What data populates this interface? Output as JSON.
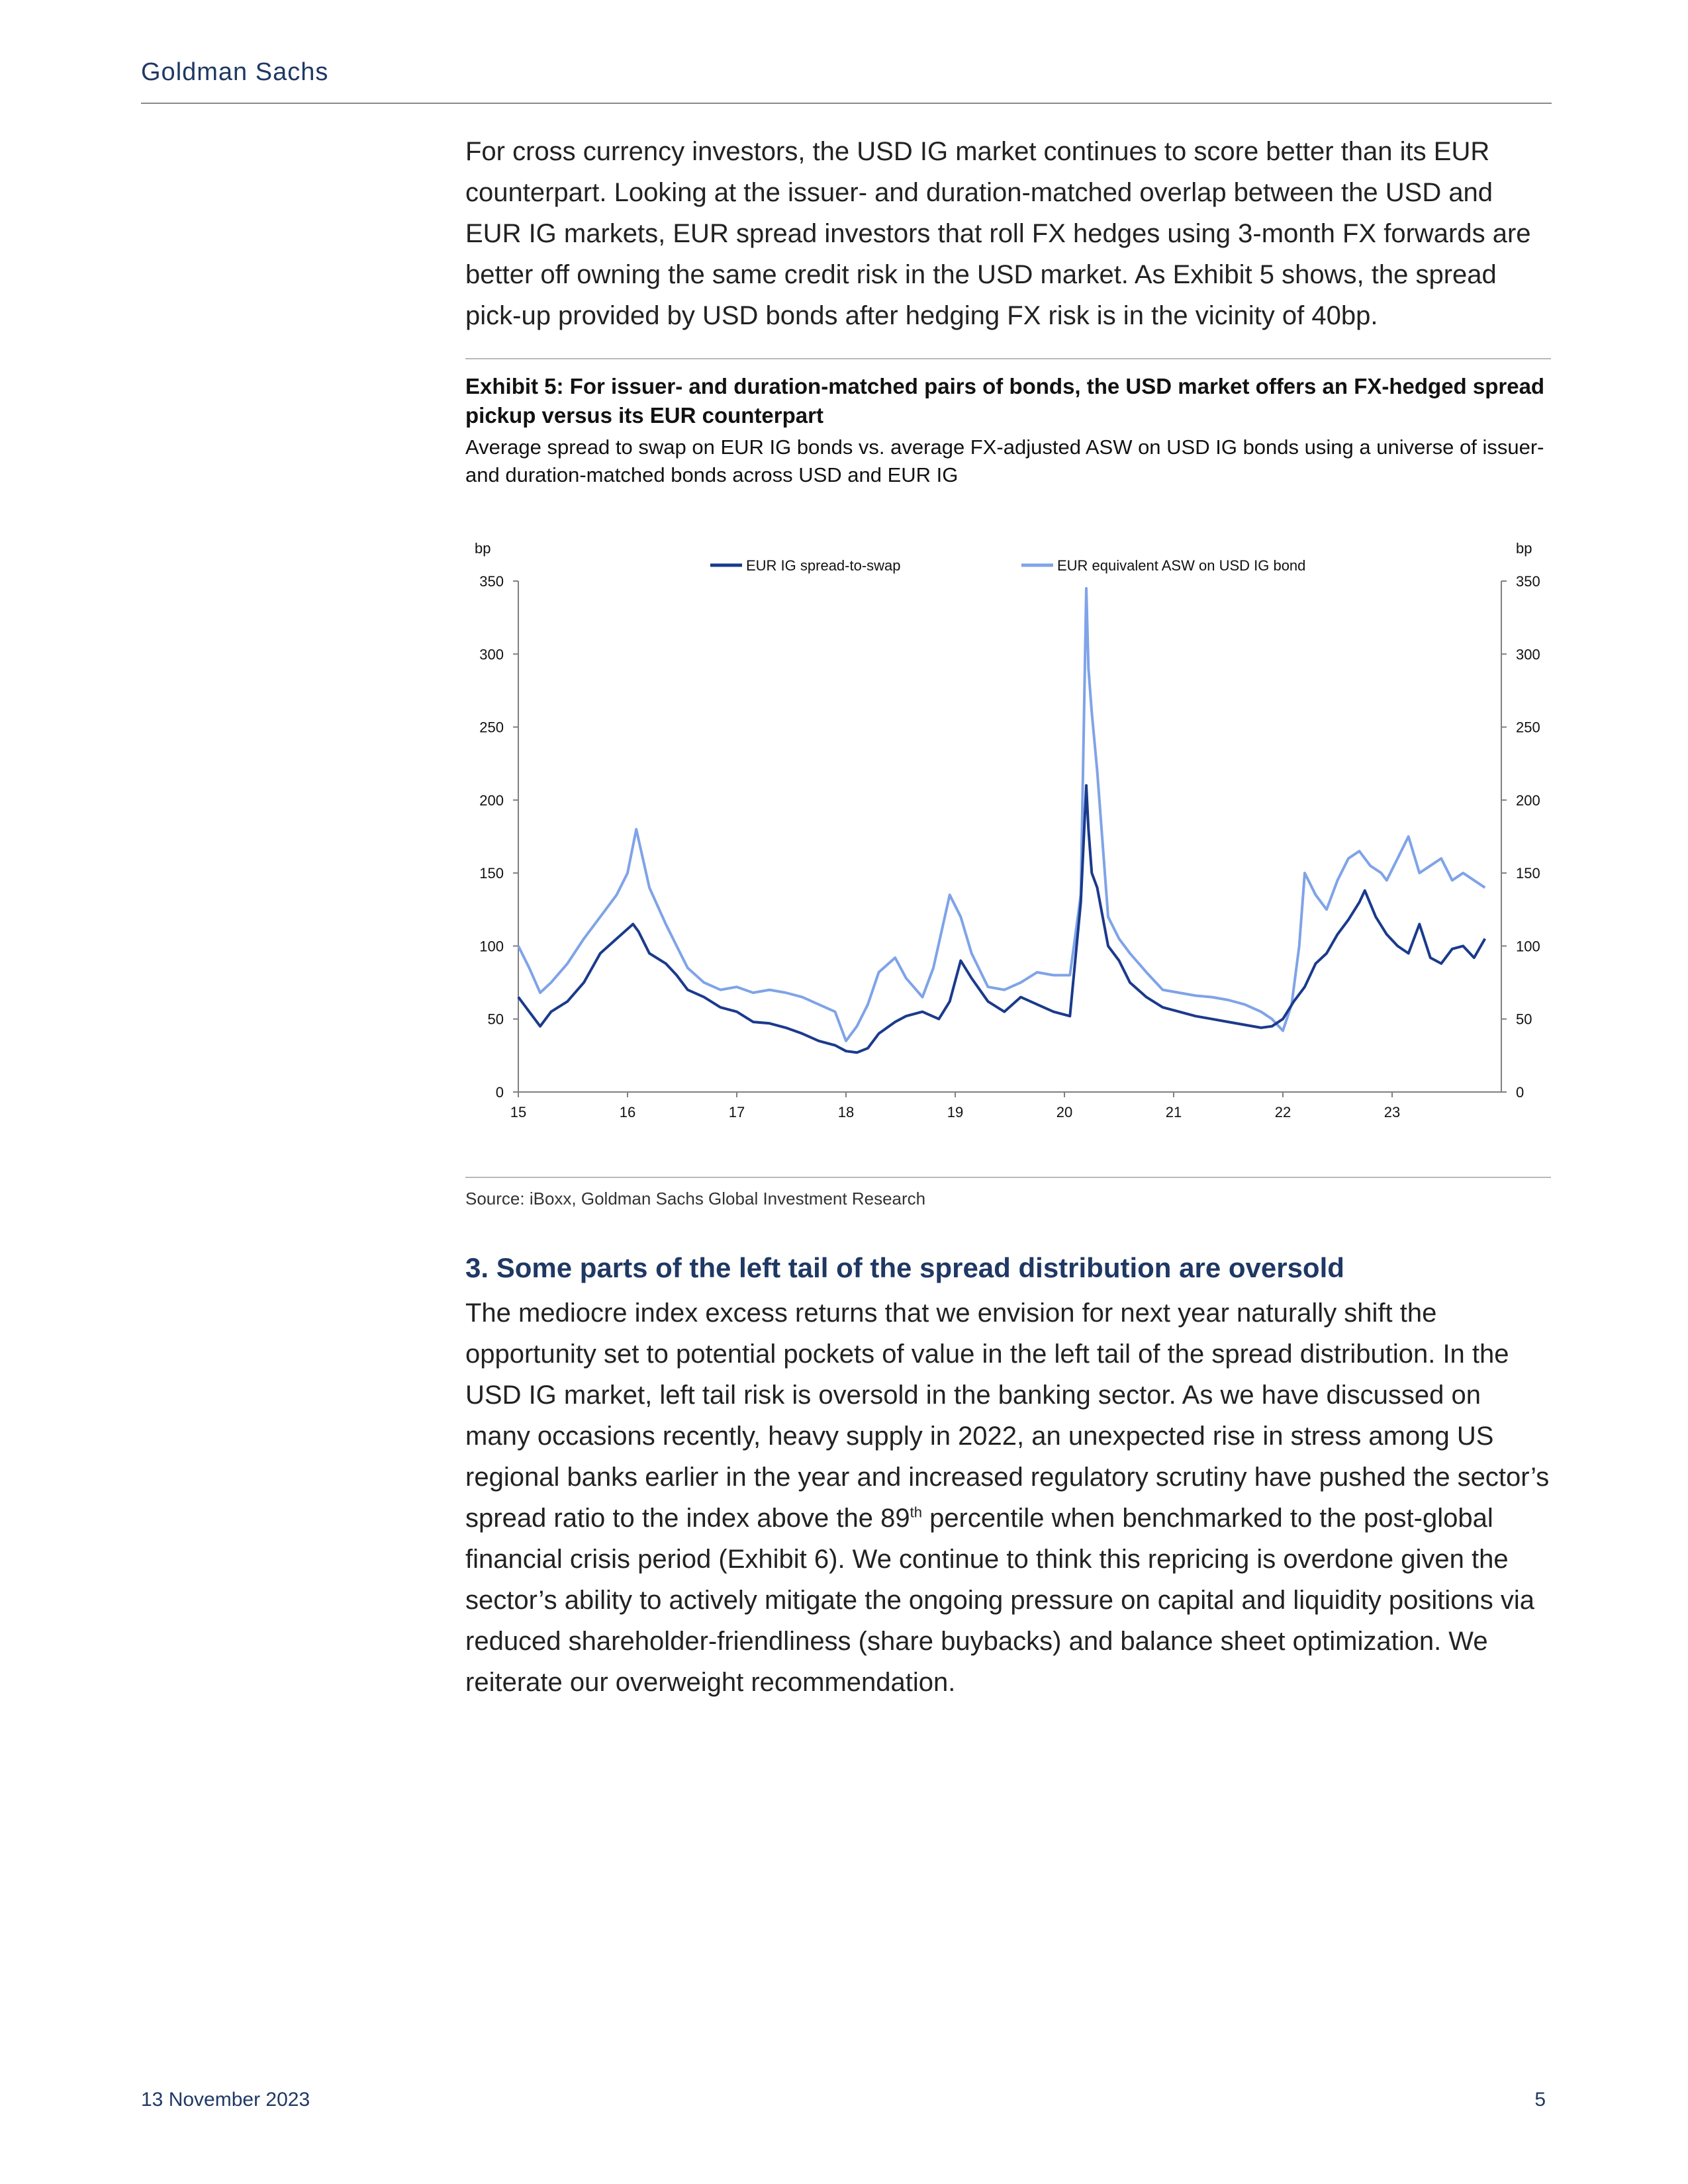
{
  "header": {
    "brand": "Goldman Sachs"
  },
  "intro_paragraph": "For cross currency investors, the USD IG market continues to score better than its EUR counterpart.  Looking at the issuer- and duration-matched overlap between the USD and EUR IG markets, EUR spread investors that roll FX hedges using 3-month FX forwards are better off owning the same credit risk in the USD market. As Exhibit 5 shows, the spread pick-up provided by USD bonds after hedging FX risk is in the vicinity of 40bp.",
  "exhibit": {
    "title": "Exhibit 5: For issuer- and duration-matched pairs of bonds, the USD market offers an FX-hedged spread pickup versus its EUR counterpart",
    "subtitle": "Average spread to swap on EUR IG bonds vs. average FX-adjusted ASW on USD IG bonds using a universe of issuer- and duration-matched bonds across USD and EUR IG",
    "source": "Source: iBoxx, Goldman Sachs Global Investment Research"
  },
  "chart_data": {
    "type": "line",
    "ylabel_left": "bp",
    "ylabel_right": "bp",
    "ylim": [
      0,
      350
    ],
    "yticks": [
      "0",
      "50",
      "100",
      "150",
      "200",
      "250",
      "300",
      "350"
    ],
    "xlim": [
      15,
      23.9
    ],
    "xticks": [
      "15",
      "16",
      "17",
      "18",
      "19",
      "20",
      "21",
      "22",
      "23"
    ],
    "legend_position": "top",
    "series": [
      {
        "name": "EUR IG spread-to-swap",
        "color": "#1a3a8c",
        "x": [
          15.0,
          15.1,
          15.2,
          15.3,
          15.45,
          15.6,
          15.75,
          15.9,
          16.05,
          16.1,
          16.2,
          16.35,
          16.45,
          16.55,
          16.7,
          16.85,
          17.0,
          17.15,
          17.3,
          17.45,
          17.6,
          17.75,
          17.9,
          18.0,
          18.1,
          18.2,
          18.3,
          18.45,
          18.55,
          18.7,
          18.85,
          18.95,
          19.05,
          19.15,
          19.3,
          19.45,
          19.6,
          19.75,
          19.9,
          20.05,
          20.15,
          20.2,
          20.22,
          20.25,
          20.3,
          20.4,
          20.5,
          20.6,
          20.75,
          20.9,
          21.05,
          21.2,
          21.35,
          21.5,
          21.65,
          21.8,
          21.9,
          22.0,
          22.1,
          22.2,
          22.3,
          22.4,
          22.5,
          22.6,
          22.7,
          22.75,
          22.85,
          22.95,
          23.05,
          23.15,
          23.25,
          23.35,
          23.45,
          23.55,
          23.65,
          23.75,
          23.85
        ],
        "values": [
          65,
          55,
          45,
          55,
          62,
          75,
          95,
          105,
          115,
          110,
          95,
          88,
          80,
          70,
          65,
          58,
          55,
          48,
          47,
          44,
          40,
          35,
          32,
          28,
          27,
          30,
          40,
          48,
          52,
          55,
          50,
          62,
          90,
          78,
          62,
          55,
          65,
          60,
          55,
          52,
          130,
          210,
          180,
          150,
          140,
          100,
          90,
          75,
          65,
          58,
          55,
          52,
          50,
          48,
          46,
          44,
          45,
          50,
          62,
          72,
          88,
          95,
          108,
          118,
          130,
          138,
          120,
          108,
          100,
          95,
          115,
          92,
          88,
          98,
          100,
          92,
          105
        ]
      },
      {
        "name": "EUR equivalent ASW on USD IG bond",
        "color": "#7fa3e8",
        "x": [
          15.0,
          15.1,
          15.2,
          15.3,
          15.45,
          15.6,
          15.75,
          15.9,
          16.0,
          16.08,
          16.2,
          16.35,
          16.45,
          16.55,
          16.7,
          16.85,
          17.0,
          17.15,
          17.3,
          17.45,
          17.6,
          17.75,
          17.9,
          18.0,
          18.1,
          18.2,
          18.3,
          18.45,
          18.55,
          18.7,
          18.8,
          18.95,
          19.05,
          19.15,
          19.3,
          19.45,
          19.6,
          19.75,
          19.9,
          20.05,
          20.15,
          20.2,
          20.22,
          20.25,
          20.3,
          20.4,
          20.5,
          20.6,
          20.75,
          20.9,
          21.05,
          21.2,
          21.35,
          21.5,
          21.65,
          21.8,
          21.9,
          22.0,
          22.08,
          22.15,
          22.2,
          22.3,
          22.4,
          22.5,
          22.6,
          22.7,
          22.8,
          22.9,
          22.95,
          23.05,
          23.15,
          23.25,
          23.35,
          23.45,
          23.55,
          23.65,
          23.75,
          23.85
        ],
        "values": [
          100,
          85,
          68,
          75,
          88,
          105,
          120,
          135,
          150,
          180,
          140,
          115,
          100,
          85,
          75,
          70,
          72,
          68,
          70,
          68,
          65,
          60,
          55,
          35,
          45,
          60,
          82,
          92,
          78,
          65,
          85,
          135,
          120,
          95,
          72,
          70,
          75,
          82,
          80,
          80,
          135,
          345,
          290,
          260,
          220,
          120,
          105,
          95,
          82,
          70,
          68,
          66,
          65,
          63,
          60,
          55,
          50,
          42,
          60,
          100,
          150,
          135,
          125,
          145,
          160,
          165,
          155,
          150,
          145,
          160,
          175,
          150,
          155,
          160,
          145,
          150,
          145,
          140
        ]
      }
    ]
  },
  "section": {
    "heading": "3. Some parts of the left tail of the spread distribution are oversold",
    "body_before_sup": "The mediocre index excess returns that we envision for next year naturally shift the opportunity set to potential pockets of value in the left tail of the spread distribution. In the USD IG market, left tail risk is oversold in the banking sector. As we have discussed on many occasions recently, heavy supply in 2022, an unexpected rise in stress among US regional banks earlier in the year and increased regulatory scrutiny have pushed the sector’s spread ratio to the index above the 89",
    "sup": "th",
    "body_after_sup": " percentile when benchmarked to the post-global financial crisis period (Exhibit 6). We continue to think this repricing is overdone given the sector’s ability to actively mitigate the ongoing pressure on capital and liquidity positions via reduced shareholder-friendliness (share buybacks) and balance sheet optimization. We reiterate our overweight recommendation."
  },
  "footer": {
    "date": "13 November 2023",
    "page_number": "5"
  }
}
